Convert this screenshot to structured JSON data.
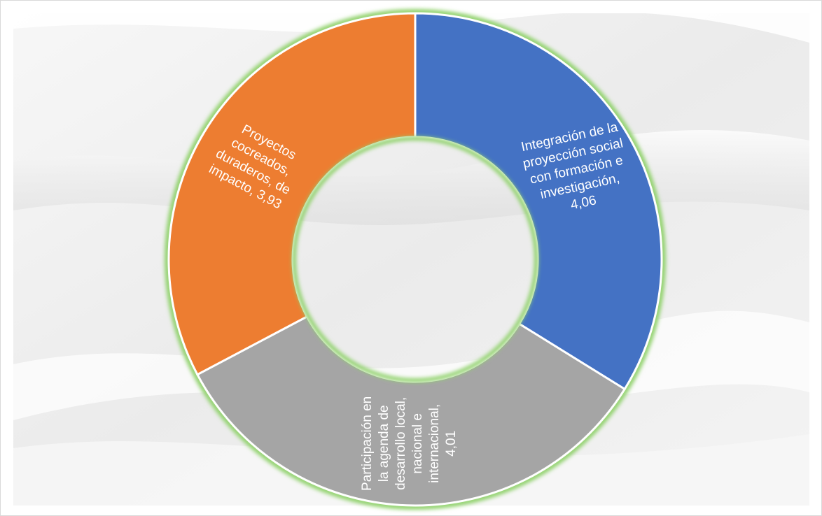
{
  "chart_data": {
    "type": "pie",
    "variant": "doughnut",
    "legend": "none",
    "categories": [
      "Integración de la proyección social con formación e investigación",
      "Participación en la agenda de desarrollo local, nacional e internacional",
      "Proyectos cocreados, duraderos, de impacto"
    ],
    "values": [
      4.06,
      4.01,
      3.93
    ],
    "colors": [
      "#4472C4",
      "#A5A5A5",
      "#ED7D31"
    ],
    "data_labels": [
      [
        "Integración de la",
        "proyección social",
        "con formación e",
        "investigación,",
        "4,06"
      ],
      [
        "Participación en",
        "la agenda de",
        "desarrollo local,",
        "nacional e",
        "internacional,",
        "4,01"
      ],
      [
        "Proyectos",
        "cocreados,",
        "duraderos, de",
        "impacto, 3,93"
      ]
    ],
    "ring_glow_color": "#8fd16a",
    "background_color": "#eeeeee"
  }
}
